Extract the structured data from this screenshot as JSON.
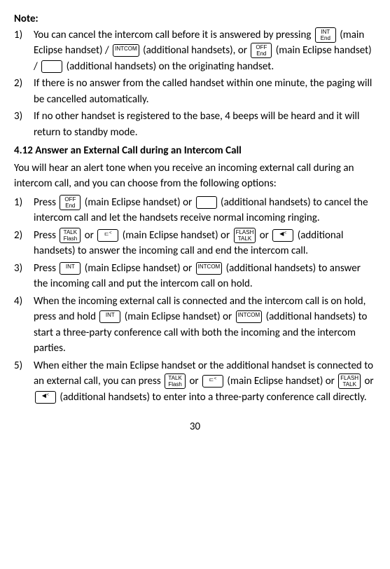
{
  "note_label": "Note:",
  "keys": {
    "int_end": {
      "line1": "INT",
      "line2": "End"
    },
    "intcom": "INTCOM",
    "off_end": {
      "line1": "OFF",
      "line2": "End"
    },
    "end_off": {
      "line1": "End",
      "line2": "OFF"
    },
    "blank": "",
    "talk_flash": {
      "line1": "TALK",
      "line2": "Flash"
    },
    "speaker": "⊏ᑉ",
    "flash_talk": {
      "line1": "FLASH",
      "line2": "TALK"
    },
    "speaker2": "◀ᑉ",
    "int": "INT"
  },
  "note_items": [
    {
      "num": "1)",
      "parts": [
        "You can cancel the intercom call before it is answered by pressing ",
        {
          "key": "int_end"
        },
        " (main Eclipse handset) / ",
        {
          "key": "intcom"
        },
        " (additional handsets), or ",
        {
          "key": "off_end"
        },
        " (main Eclipse handset) / ",
        {
          "key": "blank"
        },
        " (additional handsets) on the originating handset."
      ]
    },
    {
      "num": "2)",
      "parts": [
        "If there is no answer from the called handset within one minute, the paging will be cancelled automatically."
      ]
    },
    {
      "num": "3)",
      "parts": [
        "If no other handset is registered to the base, 4 beeps will be heard and it will return to standby mode."
      ]
    }
  ],
  "section_heading": "4.12  Answer an External Call during an Intercom Call",
  "section_intro": "You will hear an alert tone when you receive an incoming external call during an intercom call, and you can choose from the following options:",
  "section_items": [
    {
      "num": "1)",
      "parts": [
        "Press ",
        {
          "key": "off_end"
        },
        " (main Eclipse handset) or ",
        {
          "key": "blank"
        },
        " (additional handsets) to cancel the intercom call and let the handsets receive normal incoming ringing."
      ]
    },
    {
      "num": "2)",
      "parts": [
        "Press ",
        {
          "key": "talk_flash"
        },
        " or ",
        {
          "key": "speaker"
        },
        " (main Eclipse handset) or ",
        {
          "key": "flash_talk"
        },
        " or ",
        {
          "key": "speaker2"
        },
        " (additional handsets) to answer the incoming call and end the intercom call."
      ]
    },
    {
      "num": "3)",
      "parts": [
        "Press ",
        {
          "key": "int"
        },
        " (main Eclipse handset) or ",
        {
          "key": "intcom"
        },
        " (additional handsets) to answer the incoming call and put the intercom call on hold."
      ]
    },
    {
      "num": "4)",
      "parts": [
        "When the incoming external call is connected and the intercom call is on hold, press and hold ",
        {
          "key": "int"
        },
        " (main Eclipse handset) or ",
        {
          "key": "intcom"
        },
        " (additional handsets) to start a three-party conference call with both the incoming and the intercom parties."
      ]
    },
    {
      "num": "5)",
      "parts": [
        "When either the main Eclipse handset or the additional handset is connected to an external call, you can press ",
        {
          "key": "talk_flash"
        },
        " or ",
        {
          "key": "speaker"
        },
        " (main Eclipse handset) or ",
        {
          "key": "flash_talk"
        },
        " or ",
        {
          "key": "speaker2"
        },
        " (additional handsets) to enter into a three-party conference call directly."
      ]
    }
  ],
  "page_number": "30"
}
